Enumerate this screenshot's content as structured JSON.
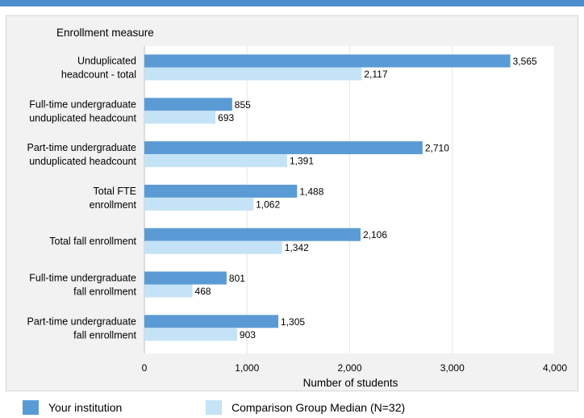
{
  "chart_data": {
    "type": "bar",
    "orientation": "horizontal",
    "category_axis_title": "Enrollment measure",
    "xlabel": "Number of students",
    "xlim": [
      0,
      4000
    ],
    "xticks": [
      "0",
      "1,000",
      "2,000",
      "3,000",
      "4,000"
    ],
    "xtick_values": [
      0,
      1000,
      2000,
      3000,
      4000
    ],
    "grid": true,
    "legend_position": "bottom",
    "categories": [
      [
        "Unduplicated",
        "headcount - total"
      ],
      [
        "Full-time undergraduate",
        "unduplicated headcount"
      ],
      [
        "Part-time undergraduate",
        "unduplicated headcount"
      ],
      [
        "Total FTE",
        "enrollment"
      ],
      [
        "Total fall enrollment"
      ],
      [
        "Full-time undergraduate",
        "fall enrollment"
      ],
      [
        "Part-time undergraduate",
        "fall enrollment"
      ]
    ],
    "series": [
      {
        "name": "Your institution",
        "color": "#5b9bd5",
        "values": [
          3565,
          855,
          2710,
          1488,
          2106,
          801,
          1305
        ],
        "labels": [
          "3,565",
          "855",
          "2,710",
          "1,488",
          "2,106",
          "801",
          "1,305"
        ]
      },
      {
        "name": "Comparison Group Median (N=32)",
        "color": "#c5e3f6",
        "values": [
          2117,
          693,
          1391,
          1062,
          1342,
          468,
          903
        ],
        "labels": [
          "2,117",
          "693",
          "1,391",
          "1,062",
          "1,342",
          "468",
          "903"
        ]
      }
    ]
  },
  "legend": {
    "items": [
      {
        "label": "Your institution",
        "color": "#5b9bd5"
      },
      {
        "label": "Comparison Group Median (N=32)",
        "color": "#c5e3f6"
      }
    ]
  }
}
